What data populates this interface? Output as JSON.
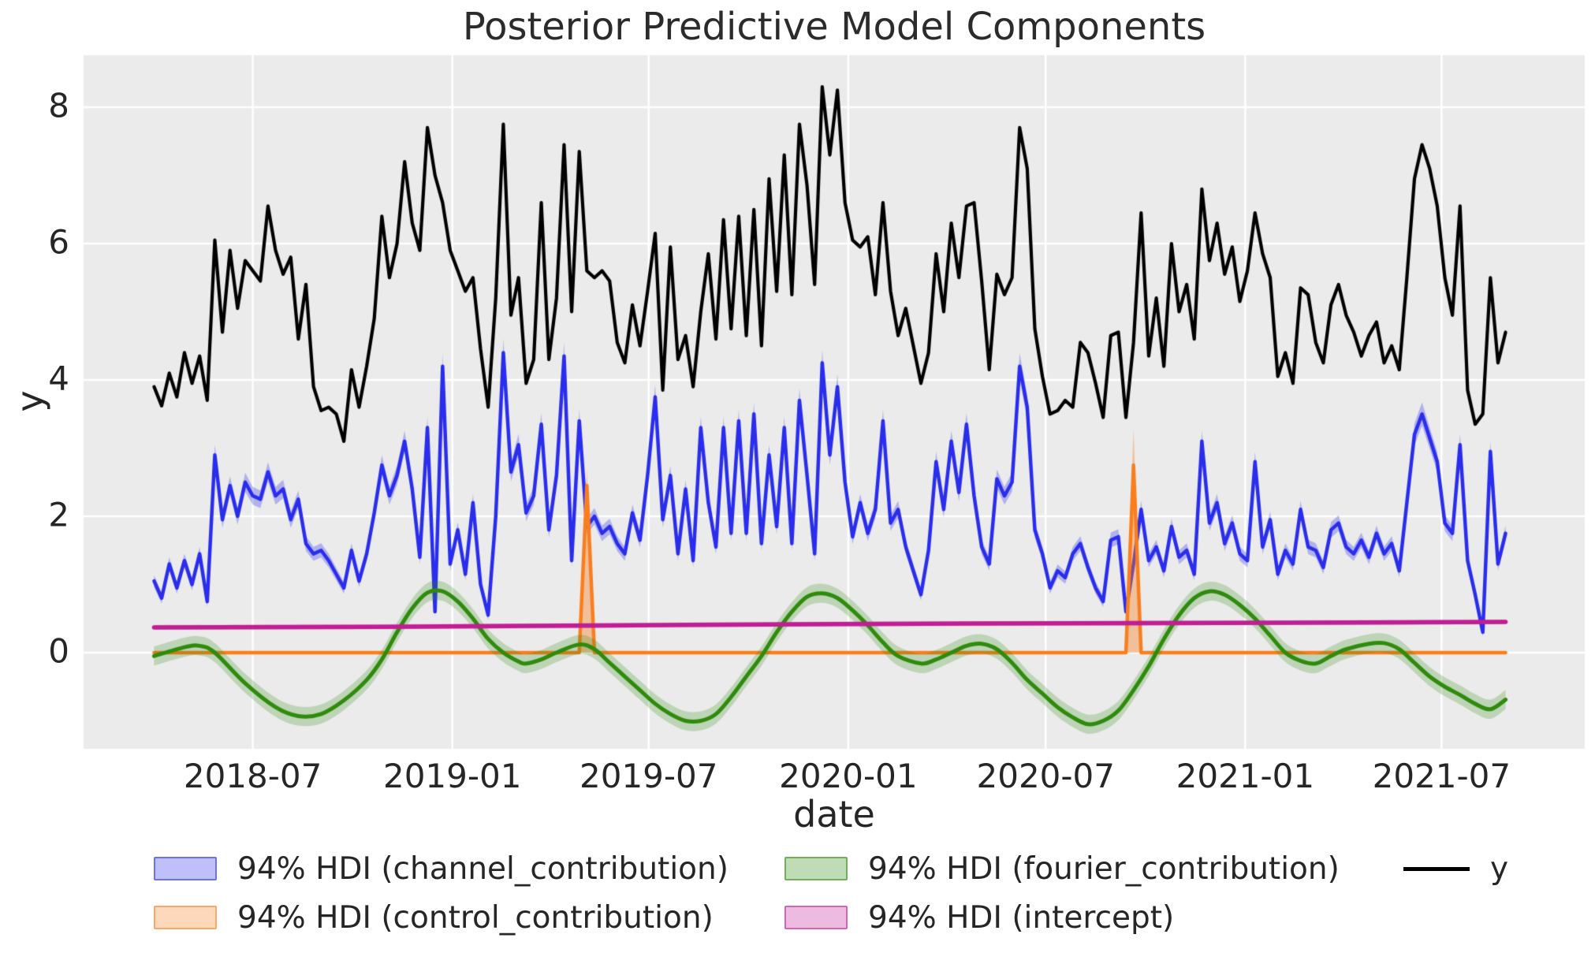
{
  "title": "Posterior Predictive Model Components",
  "axes": {
    "xlabel": "date",
    "ylabel": "y"
  },
  "colors": {
    "plot_background": "#ebebeb",
    "gridline": "#ffffff",
    "text": "#262626",
    "y_line": "#000000",
    "channel": "#2a2eec",
    "control": "#fa7e1e",
    "fourier": "#2e8b0c",
    "intercept": "#c01e94"
  },
  "legend": {
    "entries": [
      {
        "label": "94% HDI (channel_contribution)",
        "color": "#2a2eec",
        "type": "band"
      },
      {
        "label": "94% HDI (control_contribution)",
        "color": "#fa7e1e",
        "type": "band"
      },
      {
        "label": "94% HDI (fourier_contribution)",
        "color": "#2e8b0c",
        "type": "band"
      },
      {
        "label": "94% HDI (intercept)",
        "color": "#c01e94",
        "type": "band"
      },
      {
        "label": "y",
        "color": "#000000",
        "type": "line"
      }
    ]
  },
  "chart_data": {
    "type": "line",
    "title": "Posterior Predictive Model Components",
    "xlabel": "date",
    "ylabel": "y",
    "x_axis": "weekly dates",
    "x_start_date": "2018-04-01",
    "x_step_days": 7,
    "xlim": [
      "2018-01-26",
      "2021-11-10"
    ],
    "ylim": [
      -1.41,
      8.79
    ],
    "grid": true,
    "legend_position": "below",
    "x_ticks": [
      {
        "date": "2018-07-01",
        "label": "2018-07"
      },
      {
        "date": "2019-01-01",
        "label": "2019-01"
      },
      {
        "date": "2019-07-01",
        "label": "2019-07"
      },
      {
        "date": "2020-01-01",
        "label": "2020-01"
      },
      {
        "date": "2020-07-01",
        "label": "2020-07"
      },
      {
        "date": "2021-01-01",
        "label": "2021-01"
      },
      {
        "date": "2021-07-01",
        "label": "2021-07"
      }
    ],
    "y_ticks": [
      {
        "value": 0,
        "label": "0"
      },
      {
        "value": 2,
        "label": "2"
      },
      {
        "value": 4,
        "label": "4"
      },
      {
        "value": 6,
        "label": "6"
      },
      {
        "value": 8,
        "label": "8"
      }
    ],
    "series": [
      {
        "name": "y",
        "kind": "weekly",
        "color": "#000000",
        "line_width": 4.2,
        "band": null,
        "values": [
          3.9,
          3.62,
          4.1,
          3.75,
          4.4,
          3.95,
          4.35,
          3.7,
          6.05,
          4.7,
          5.9,
          5.05,
          5.75,
          5.6,
          5.45,
          6.55,
          5.9,
          5.55,
          5.8,
          4.6,
          5.4,
          3.9,
          3.55,
          3.6,
          3.5,
          3.1,
          4.15,
          3.6,
          4.2,
          4.9,
          6.4,
          5.5,
          6.0,
          7.2,
          6.3,
          5.9,
          7.7,
          7.0,
          6.6,
          5.9,
          5.6,
          5.3,
          5.5,
          4.45,
          3.6,
          5.2,
          7.75,
          4.95,
          5.5,
          3.95,
          4.3,
          6.6,
          4.3,
          5.2,
          7.45,
          5.0,
          7.35,
          5.6,
          5.5,
          5.6,
          5.45,
          4.55,
          4.25,
          5.1,
          4.5,
          5.3,
          6.15,
          3.85,
          5.95,
          4.3,
          4.65,
          3.9,
          5.0,
          5.85,
          4.6,
          6.35,
          4.75,
          6.4,
          4.65,
          6.5,
          4.5,
          6.95,
          5.3,
          7.3,
          5.25,
          7.75,
          6.85,
          5.4,
          8.3,
          7.3,
          8.25,
          6.6,
          6.05,
          5.95,
          6.1,
          5.25,
          6.6,
          5.3,
          4.65,
          5.05,
          4.5,
          3.95,
          4.4,
          5.85,
          5.0,
          6.3,
          5.5,
          6.55,
          6.6,
          5.45,
          4.15,
          5.55,
          5.25,
          5.5,
          7.7,
          7.1,
          4.75,
          4.05,
          3.5,
          3.55,
          3.7,
          3.6,
          4.55,
          4.4,
          3.95,
          3.45,
          4.65,
          4.7,
          3.45,
          4.55,
          6.45,
          4.35,
          5.2,
          4.2,
          6.0,
          5.0,
          5.4,
          4.6,
          6.8,
          5.75,
          6.3,
          5.55,
          5.95,
          5.15,
          5.6,
          6.45,
          5.85,
          5.5,
          4.05,
          4.4,
          3.95,
          5.35,
          5.25,
          4.55,
          4.25,
          5.1,
          5.4,
          4.95,
          4.7,
          4.35,
          4.65,
          4.85,
          4.25,
          4.5,
          4.15,
          5.5,
          6.95,
          7.45,
          7.1,
          6.55,
          5.5,
          4.95,
          6.55,
          3.85,
          3.35,
          3.5,
          5.5,
          4.25,
          4.7
        ]
      },
      {
        "name": "channel_contribution",
        "kind": "weekly",
        "color": "#2a2eec",
        "line_width": 4.5,
        "band": {
          "alpha": 0.3,
          "halfwidth_base": 0.055,
          "halfwidth_scale": 0.033
        },
        "values": [
          1.05,
          0.8,
          1.3,
          0.95,
          1.35,
          1.0,
          1.45,
          0.75,
          2.9,
          1.95,
          2.45,
          2.0,
          2.5,
          2.3,
          2.25,
          2.65,
          2.3,
          2.4,
          1.95,
          2.25,
          1.6,
          1.45,
          1.5,
          1.35,
          1.15,
          0.95,
          1.5,
          1.05,
          1.45,
          2.05,
          2.75,
          2.3,
          2.6,
          3.1,
          2.4,
          1.4,
          3.3,
          0.6,
          4.2,
          1.3,
          1.8,
          1.15,
          2.2,
          1.0,
          0.55,
          2.0,
          4.4,
          2.65,
          3.05,
          2.05,
          2.3,
          3.35,
          1.8,
          2.6,
          4.35,
          1.35,
          3.4,
          1.85,
          2.0,
          1.75,
          1.85,
          1.6,
          1.45,
          2.05,
          1.65,
          2.6,
          3.75,
          1.95,
          2.6,
          1.45,
          2.4,
          1.35,
          3.3,
          2.2,
          1.55,
          3.3,
          1.75,
          3.4,
          1.75,
          3.5,
          1.6,
          2.9,
          1.85,
          3.3,
          1.6,
          3.7,
          2.6,
          1.45,
          4.25,
          2.9,
          3.9,
          2.5,
          1.7,
          2.2,
          1.75,
          2.1,
          3.4,
          1.9,
          2.1,
          1.55,
          1.2,
          0.85,
          1.5,
          2.8,
          2.1,
          3.1,
          2.35,
          3.35,
          2.3,
          1.55,
          1.3,
          2.55,
          2.3,
          2.5,
          4.2,
          3.6,
          1.8,
          1.45,
          0.95,
          1.2,
          1.1,
          1.45,
          1.6,
          1.25,
          0.95,
          0.75,
          1.65,
          1.7,
          0.6,
          1.3,
          2.1,
          1.35,
          1.55,
          1.2,
          1.85,
          1.4,
          1.5,
          1.15,
          3.1,
          1.9,
          2.2,
          1.6,
          1.9,
          1.45,
          1.35,
          2.8,
          1.55,
          1.95,
          1.15,
          1.5,
          1.3,
          2.1,
          1.55,
          1.5,
          1.25,
          1.8,
          1.9,
          1.55,
          1.45,
          1.65,
          1.4,
          1.75,
          1.45,
          1.6,
          1.2,
          2.2,
          3.2,
          3.5,
          3.15,
          2.8,
          1.9,
          1.75,
          3.05,
          1.35,
          0.85,
          0.3,
          2.95,
          1.3,
          1.75
        ]
      },
      {
        "name": "control_contribution",
        "kind": "baseline-spikes",
        "color": "#fa7e1e",
        "line_width": 4.5,
        "baseline": 0,
        "band": {
          "alpha": 0.4
        },
        "spikes": [
          {
            "week": 57,
            "date": "2019-05-05",
            "peak": 2.45,
            "band_peak": 2.68
          },
          {
            "week": 129,
            "date": "2020-09-20",
            "peak": 2.75,
            "band_peak": 3.28
          }
        ]
      },
      {
        "name": "fourier_contribution",
        "kind": "smooth",
        "color": "#2e8b0c",
        "line_width": 5,
        "band": {
          "alpha": 0.24,
          "halfwidth": 0.14
        },
        "points": [
          [
            0,
            -0.05
          ],
          [
            4,
            0.08
          ],
          [
            6,
            0.1
          ],
          [
            8,
            0.0
          ],
          [
            12,
            -0.45
          ],
          [
            16,
            -0.8
          ],
          [
            19,
            -0.93
          ],
          [
            22,
            -0.9
          ],
          [
            25,
            -0.7
          ],
          [
            28,
            -0.4
          ],
          [
            30,
            -0.1
          ],
          [
            32,
            0.3
          ],
          [
            34,
            0.65
          ],
          [
            36,
            0.88
          ],
          [
            38,
            0.9
          ],
          [
            40,
            0.75
          ],
          [
            42,
            0.5
          ],
          [
            44,
            0.2
          ],
          [
            46,
            0.0
          ],
          [
            48,
            -0.13
          ],
          [
            49,
            -0.16
          ],
          [
            51,
            -0.1
          ],
          [
            53,
            0.0
          ],
          [
            56,
            0.12
          ],
          [
            58,
            0.05
          ],
          [
            60,
            -0.15
          ],
          [
            62,
            -0.35
          ],
          [
            64,
            -0.55
          ],
          [
            66,
            -0.75
          ],
          [
            68,
            -0.9
          ],
          [
            70,
            -1.0
          ],
          [
            72,
            -1.0
          ],
          [
            74,
            -0.9
          ],
          [
            76,
            -0.65
          ],
          [
            78,
            -0.35
          ],
          [
            80,
            -0.05
          ],
          [
            82,
            0.3
          ],
          [
            84,
            0.6
          ],
          [
            86,
            0.82
          ],
          [
            88,
            0.87
          ],
          [
            90,
            0.8
          ],
          [
            92,
            0.62
          ],
          [
            94,
            0.4
          ],
          [
            96,
            0.15
          ],
          [
            98,
            -0.05
          ],
          [
            101,
            -0.16
          ],
          [
            103,
            -0.1
          ],
          [
            105,
            0.0
          ],
          [
            107,
            0.1
          ],
          [
            109,
            0.13
          ],
          [
            111,
            0.05
          ],
          [
            113,
            -0.15
          ],
          [
            115,
            -0.4
          ],
          [
            117,
            -0.6
          ],
          [
            119,
            -0.8
          ],
          [
            121,
            -0.95
          ],
          [
            123,
            -1.05
          ],
          [
            125,
            -1.0
          ],
          [
            127,
            -0.85
          ],
          [
            129,
            -0.55
          ],
          [
            131,
            -0.2
          ],
          [
            133,
            0.2
          ],
          [
            135,
            0.55
          ],
          [
            137,
            0.8
          ],
          [
            139,
            0.9
          ],
          [
            141,
            0.85
          ],
          [
            143,
            0.7
          ],
          [
            145,
            0.5
          ],
          [
            147,
            0.25
          ],
          [
            149,
            0.0
          ],
          [
            151,
            -0.12
          ],
          [
            153,
            -0.16
          ],
          [
            155,
            -0.05
          ],
          [
            157,
            0.05
          ],
          [
            160,
            0.13
          ],
          [
            162,
            0.14
          ],
          [
            164,
            0.05
          ],
          [
            166,
            -0.15
          ],
          [
            168,
            -0.35
          ],
          [
            170,
            -0.5
          ],
          [
            172,
            -0.62
          ],
          [
            174,
            -0.75
          ],
          [
            176,
            -0.83
          ],
          [
            178,
            -0.69
          ]
        ]
      },
      {
        "name": "intercept",
        "kind": "smooth",
        "color": "#c01e94",
        "line_width": 5.5,
        "band": {
          "alpha": 0.28,
          "halfwidth": 0.035
        },
        "points": [
          [
            0,
            0.37
          ],
          [
            30,
            0.38
          ],
          [
            60,
            0.4
          ],
          [
            90,
            0.42
          ],
          [
            120,
            0.43
          ],
          [
            150,
            0.44
          ],
          [
            178,
            0.45
          ]
        ]
      }
    ]
  }
}
